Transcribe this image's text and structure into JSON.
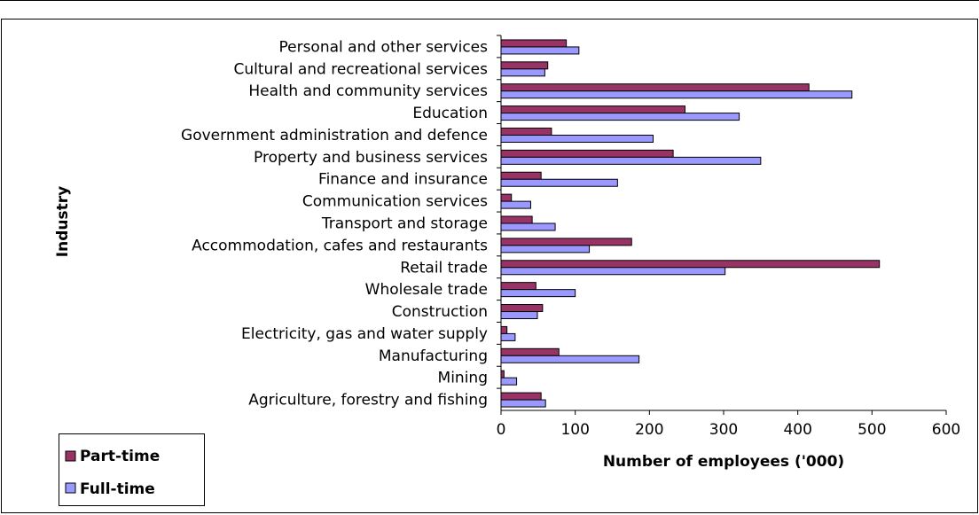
{
  "chart_data": {
    "type": "bar",
    "orientation": "horizontal",
    "title": "",
    "xlabel": "Number of employees ('000)",
    "ylabel": "Industry",
    "xlim": [
      0,
      600
    ],
    "xticks": [
      0,
      100,
      200,
      300,
      400,
      500,
      600
    ],
    "grid": false,
    "legend_position": "bottom-left",
    "categories": [
      "Personal and other services",
      "Cultural and recreational services",
      "Health and community services",
      "Education",
      "Government administration and defence",
      "Property and business services",
      "Finance and insurance",
      "Communication services",
      "Transport and storage",
      "Accommodation, cafes and restaurants",
      "Retail trade",
      "Wholesale trade",
      "Construction",
      "Electricity, gas and water supply",
      "Manufacturing",
      "Mining",
      "Agriculture, forestry and fishing"
    ],
    "series": [
      {
        "name": "Part-time",
        "color": "#993366",
        "values": [
          88,
          63,
          415,
          248,
          68,
          232,
          54,
          14,
          42,
          176,
          510,
          47,
          56,
          8,
          78,
          4,
          54
        ]
      },
      {
        "name": "Full-time",
        "color": "#9999ff",
        "values": [
          105,
          59,
          473,
          321,
          205,
          350,
          157,
          40,
          73,
          119,
          302,
          100,
          49,
          19,
          186,
          21,
          60
        ]
      }
    ]
  }
}
